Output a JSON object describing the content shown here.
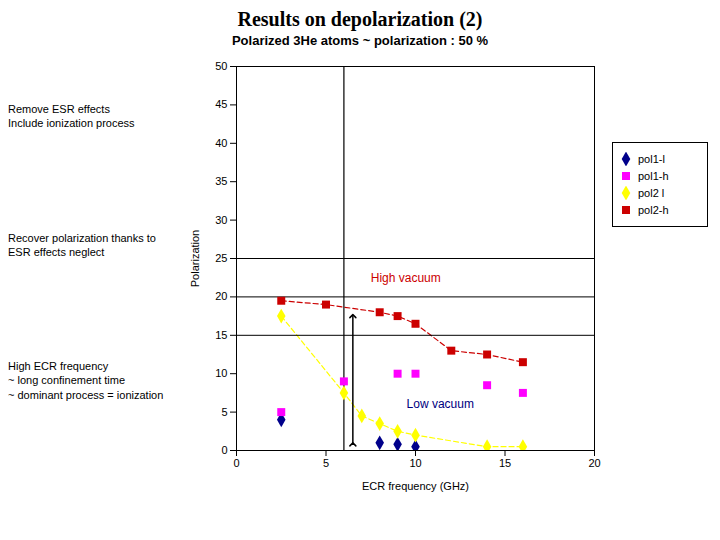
{
  "chart_data": {
    "type": "scatter",
    "title": "Results on depolarization (2)",
    "subtitle": "Polarized 3He atoms ~ polarization : 50 %",
    "notes": [
      "Remove ESR effects\nInclude ionization process",
      "Recover polarization thanks to\nESR effects neglect",
      "High ECR frequency\n~ long confinement time\n~ dominant process = ionization"
    ],
    "xlabel": "ECR frequency (GHz)",
    "ylabel": "Polarization",
    "xlim": [
      0,
      20
    ],
    "ylim": [
      0,
      50
    ],
    "xticks": [
      0,
      5,
      10,
      15,
      20
    ],
    "yticks": [
      0,
      5,
      10,
      15,
      20,
      25,
      30,
      35,
      40,
      45,
      50
    ],
    "grid": false,
    "legend": "right",
    "vlines": [
      6
    ],
    "hlines": [
      15,
      20,
      25
    ],
    "series": [
      {
        "name": "pol1-l",
        "color": "#00008B",
        "marker": "diamond",
        "line_style": "none",
        "x": [
          2.5,
          8,
          9,
          10
        ],
        "values": [
          4,
          1,
          0.8,
          0.5
        ]
      },
      {
        "name": "pol1-h",
        "color": "#FF00FF",
        "marker": "square",
        "line_style": "none",
        "x": [
          2.5,
          6,
          9,
          10,
          14,
          16
        ],
        "values": [
          5,
          9,
          10,
          10,
          8.5,
          7.5
        ]
      },
      {
        "name": "pol2 l",
        "color": "#FFFF00",
        "marker": "diamond",
        "line_style": "dashed",
        "x": [
          2.5,
          6,
          7,
          8,
          9,
          10,
          14,
          16
        ],
        "values": [
          17.5,
          7.5,
          4.5,
          3.5,
          2.5,
          2,
          0.5,
          0.5
        ]
      },
      {
        "name": "pol2-h",
        "color": "#CC0000",
        "marker": "square",
        "line_style": "dashed",
        "x": [
          2.5,
          5,
          8,
          9,
          10,
          12,
          14,
          16
        ],
        "values": [
          19.5,
          19,
          18,
          17.5,
          16.5,
          13,
          12.5,
          11.5
        ]
      }
    ],
    "arrow": {
      "x": 6.5,
      "y_start": 0.8,
      "y_end": 17.5
    },
    "annotations": [
      {
        "text": "High vacuum",
        "x": 7.5,
        "y": 22,
        "color": "#CC0000"
      },
      {
        "text": "Low vacuum",
        "x": 9.5,
        "y": 5.5,
        "color": "#000080"
      }
    ]
  }
}
